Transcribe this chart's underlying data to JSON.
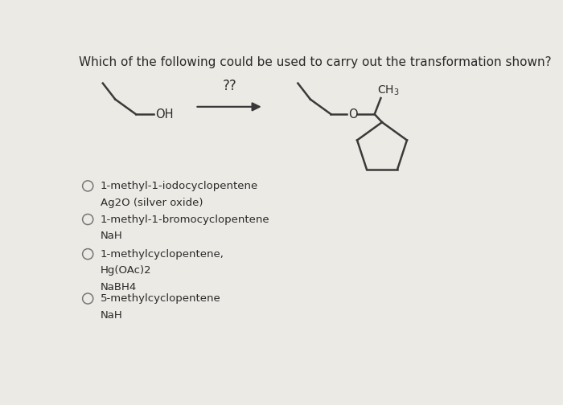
{
  "background_color": "#eceae4",
  "title": "Which of the following could be used to carry out the transformation shown?",
  "title_fontsize": 11.0,
  "arrow_label": "??",
  "options": [
    [
      "1-methyl-1-iodocyclopentene",
      "Ag2O (silver oxide)"
    ],
    [
      "1-methyl-1-bromocyclopentene",
      "NaH"
    ],
    [
      "1-methylcyclopentene,",
      "Hg(OAc)2",
      "NaBH4"
    ],
    [
      "5-methylcyclopentene",
      "NaH"
    ]
  ],
  "text_color": "#2a2a2a",
  "line_color": "#3a3a3a",
  "circle_color": "#888888",
  "font_family": "DejaVu Sans"
}
